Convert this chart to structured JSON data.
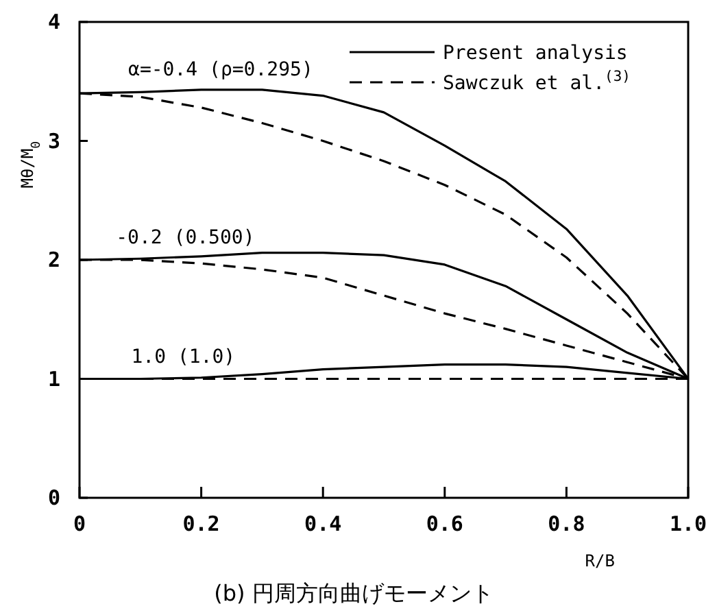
{
  "chart_data": {
    "type": "line",
    "title": "(b)  円周方向曲げモーメント",
    "xlabel": "R/B",
    "ylabel": "Mθ/M$_{0}$",
    "x": [
      0,
      0.1,
      0.2,
      0.3,
      0.4,
      0.5,
      0.6,
      0.7,
      0.8,
      0.9,
      1.0
    ],
    "series": [
      {
        "name": "Present analysis",
        "color": "#000000",
        "line_style": "solid",
        "values": [
          3.4,
          3.41,
          3.43,
          3.43,
          3.38,
          3.24,
          2.96,
          2.66,
          2.26,
          1.7,
          1.0
        ]
      },
      {
        "name": "Sawczuk et al.$^{(3)}$",
        "color": "#000000",
        "line_style": "dashed",
        "values": [
          3.4,
          3.37,
          3.28,
          3.15,
          3.0,
          2.83,
          2.63,
          2.38,
          2.02,
          1.55,
          1.0
        ]
      },
      {
        "color": "#000000",
        "line_style": "solid",
        "values": [
          2.0,
          2.01,
          2.03,
          2.06,
          2.06,
          2.04,
          1.96,
          1.78,
          1.5,
          1.22,
          1.0
        ]
      },
      {
        "color": "#000000",
        "line_style": "dashed",
        "values": [
          2.0,
          2.0,
          1.97,
          1.92,
          1.85,
          1.7,
          1.55,
          1.42,
          1.28,
          1.14,
          1.0
        ]
      },
      {
        "color": "#000000",
        "line_style": "solid",
        "values": [
          1.0,
          1.0,
          1.01,
          1.04,
          1.08,
          1.1,
          1.12,
          1.12,
          1.1,
          1.05,
          1.0
        ]
      },
      {
        "color": "#000000",
        "line_style": "dashed",
        "values": [
          1.0,
          1.0,
          1.0,
          1.0,
          1.0,
          1.0,
          1.0,
          1.0,
          1.0,
          1.0,
          1.0
        ]
      }
    ],
    "annotations": [
      {
        "text": "α=-0.4 (ρ=0.295)",
        "x": 0.08,
        "y": 3.41
      },
      {
        "text": "-0.2 (0.500)",
        "x": 0.06,
        "y": 2.0
      },
      {
        "text": "1.0 (1.0)",
        "x": 0.085,
        "y": 1.0
      }
    ],
    "xlim": [
      0,
      1.0
    ],
    "ylim": [
      0,
      4
    ],
    "xticks": [
      0,
      0.2,
      0.4,
      0.6,
      0.8,
      {
        "value": 1.0,
        "label": "1.0"
      }
    ],
    "yticks": [
      0,
      1,
      2,
      3,
      4
    ],
    "grid": false,
    "legend": "top right",
    "marker": "none"
  }
}
